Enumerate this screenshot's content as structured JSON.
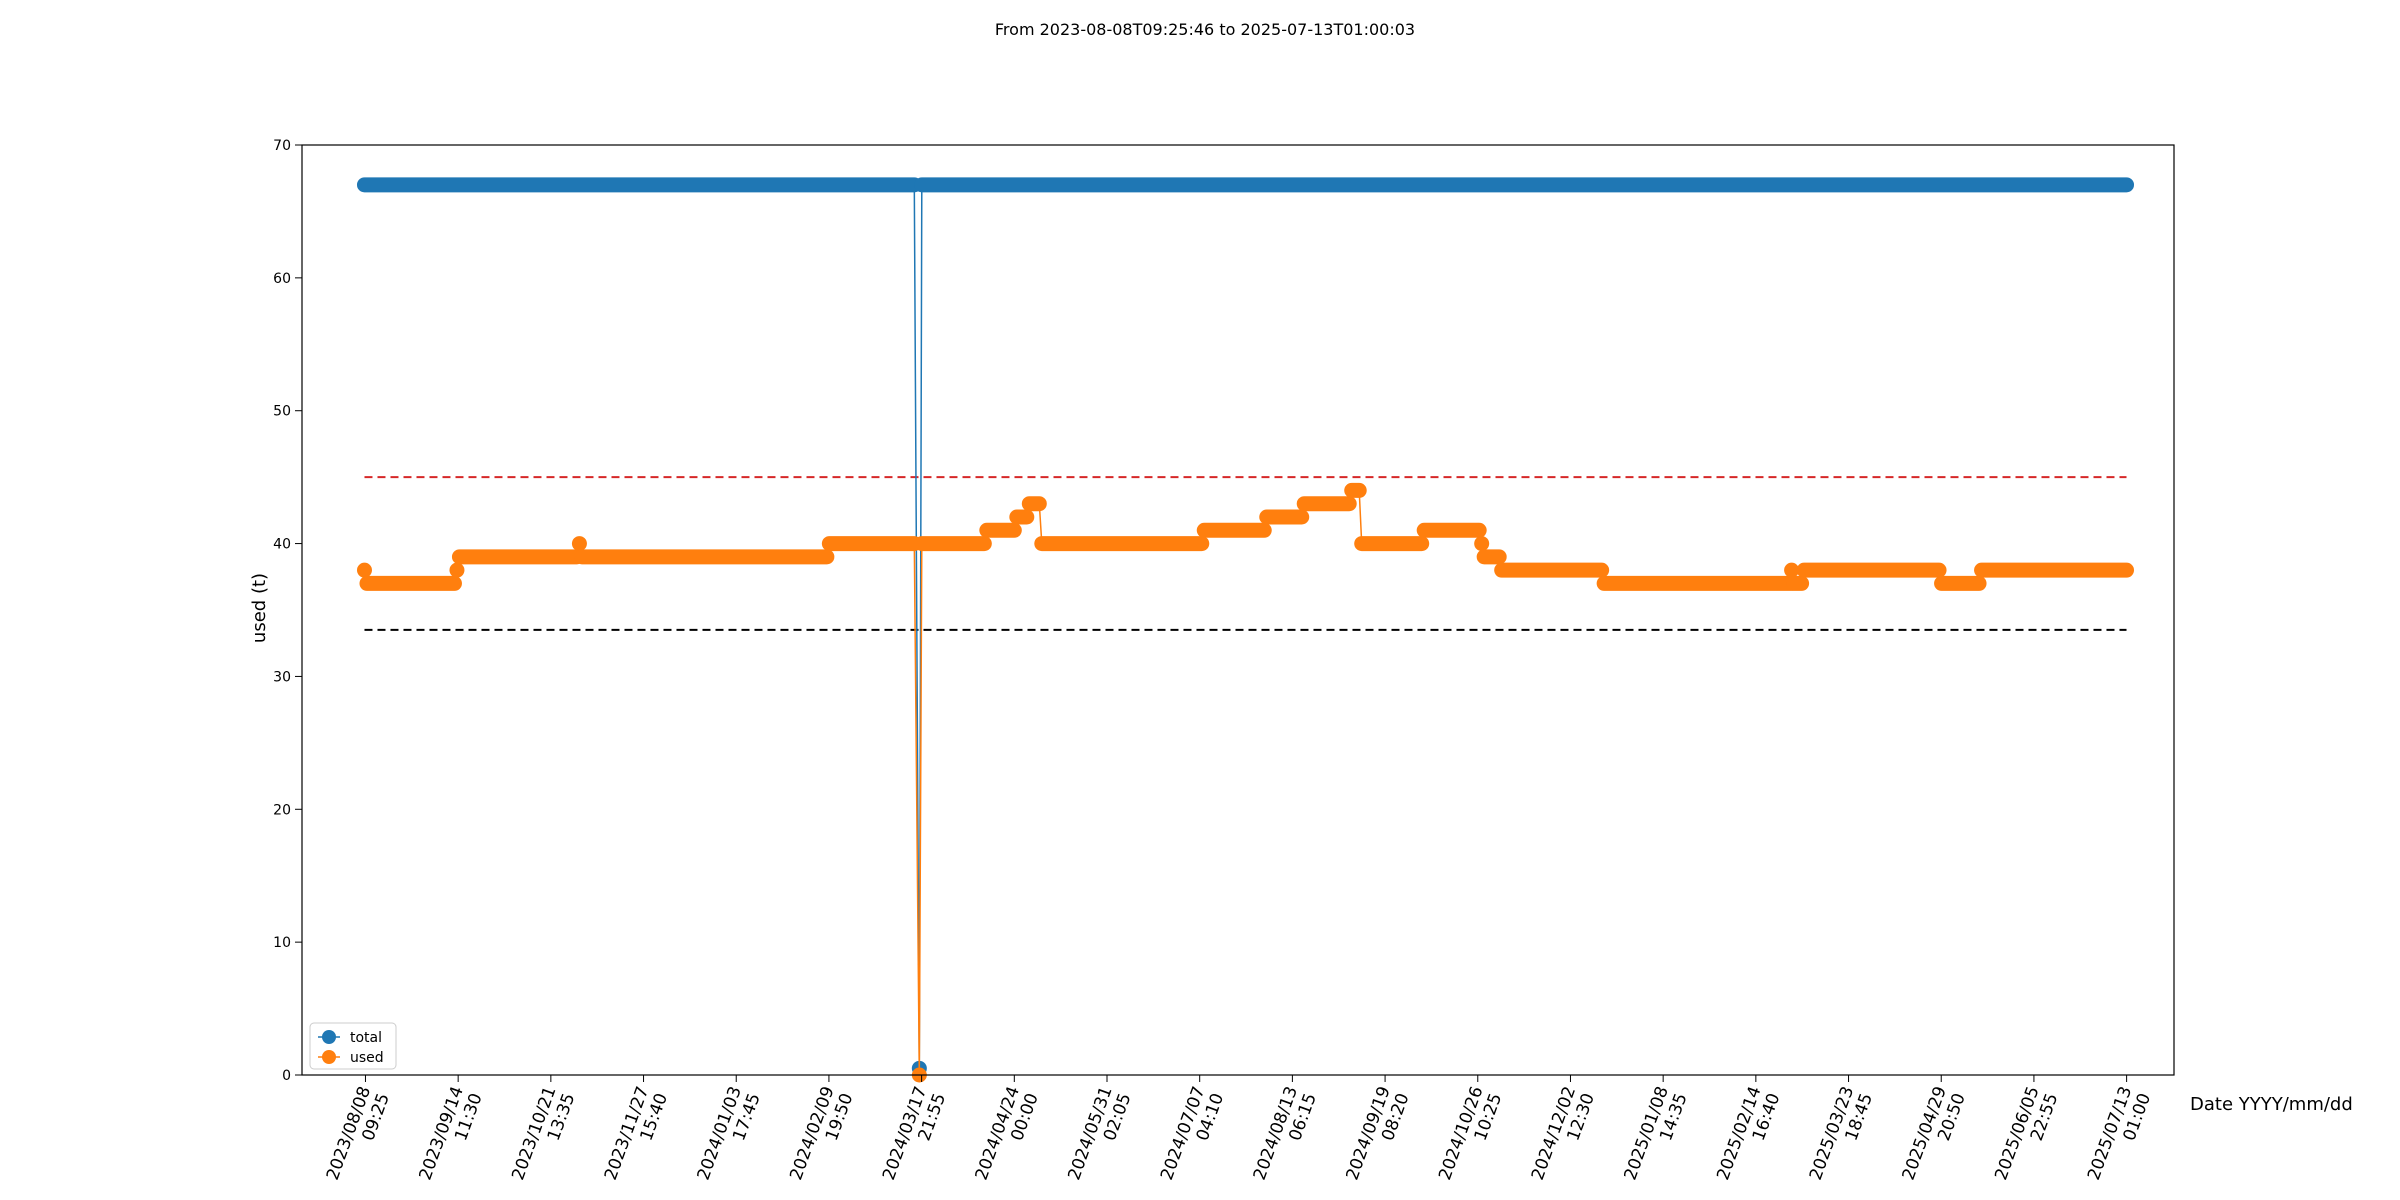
{
  "chart_data": {
    "type": "line",
    "title": "From 2023-08-08T09:25:46 to 2025-07-13T01:00:03",
    "xlabel": "Date YYYY/mm/dd",
    "ylabel": "used (t)",
    "ylim": [
      0,
      70
    ],
    "yticks": [
      0,
      10,
      20,
      30,
      40,
      50,
      60,
      70
    ],
    "xlim": [
      "2023-07-14",
      "2025-08-01"
    ],
    "xticks": [
      {
        "date": "2023-08-08T09:25",
        "label": [
          "2023/08/08",
          "09:25"
        ]
      },
      {
        "date": "2023-09-14T11:30",
        "label": [
          "2023/09/14",
          "11:30"
        ]
      },
      {
        "date": "2023-10-21T13:35",
        "label": [
          "2023/10/21",
          "13:35"
        ]
      },
      {
        "date": "2023-11-27T15:40",
        "label": [
          "2023/11/27",
          "15:40"
        ]
      },
      {
        "date": "2024-01-03T17:45",
        "label": [
          "2024/01/03",
          "17:45"
        ]
      },
      {
        "date": "2024-02-09T19:50",
        "label": [
          "2024/02/09",
          "19:50"
        ]
      },
      {
        "date": "2024-03-17T21:55",
        "label": [
          "2024/03/17",
          "21:55"
        ]
      },
      {
        "date": "2024-04-24T00:00",
        "label": [
          "2024/04/24",
          "00:00"
        ]
      },
      {
        "date": "2024-05-31T02:05",
        "label": [
          "2024/05/31",
          "02:05"
        ]
      },
      {
        "date": "2024-07-07T04:10",
        "label": [
          "2024/07/07",
          "04:10"
        ]
      },
      {
        "date": "2024-08-13T06:15",
        "label": [
          "2024/08/13",
          "06:15"
        ]
      },
      {
        "date": "2024-09-19T08:20",
        "label": [
          "2024/09/19",
          "08:20"
        ]
      },
      {
        "date": "2024-10-26T10:25",
        "label": [
          "2024/10/26",
          "10:25"
        ]
      },
      {
        "date": "2024-12-02T12:30",
        "label": [
          "2024/12/02",
          "12:30"
        ]
      },
      {
        "date": "2025-01-08T14:35",
        "label": [
          "2025/01/08",
          "14:35"
        ]
      },
      {
        "date": "2025-02-14T16:40",
        "label": [
          "2025/02/14",
          "16:40"
        ]
      },
      {
        "date": "2025-03-23T18:45",
        "label": [
          "2025/03/23",
          "18:45"
        ]
      },
      {
        "date": "2025-04-29T20:50",
        "label": [
          "2025/04/29",
          "20:50"
        ]
      },
      {
        "date": "2025-06-05T22:55",
        "label": [
          "2025/06/05",
          "22:55"
        ]
      },
      {
        "date": "2025-07-13T01:00",
        "label": [
          "2025/07/13",
          "01:00"
        ]
      }
    ],
    "legend": {
      "position": "lower-left",
      "entries": [
        "total",
        "used"
      ]
    },
    "grid": false,
    "series": [
      {
        "name": "total",
        "color": "#1f77b4",
        "segments": [
          {
            "start": "2023-08-08",
            "end": "2024-03-15",
            "value": 67
          },
          {
            "start": "2024-03-17",
            "end": "2024-03-17",
            "value": 0.5
          },
          {
            "start": "2024-03-18",
            "end": "2025-07-13",
            "value": 67
          }
        ]
      },
      {
        "name": "used",
        "color": "#ff7f0e",
        "segments": [
          {
            "start": "2023-08-08",
            "end": "2023-08-08",
            "value": 38
          },
          {
            "start": "2023-08-09",
            "end": "2023-09-13",
            "value": 37
          },
          {
            "start": "2023-09-14",
            "end": "2023-09-14",
            "value": 38
          },
          {
            "start": "2023-09-15",
            "end": "2023-11-01",
            "value": 39
          },
          {
            "start": "2023-11-02",
            "end": "2023-11-02",
            "value": 40
          },
          {
            "start": "2023-11-03",
            "end": "2024-02-09",
            "value": 39
          },
          {
            "start": "2024-02-10",
            "end": "2024-03-15",
            "value": 40
          },
          {
            "start": "2024-03-17",
            "end": "2024-03-17",
            "value": 0
          },
          {
            "start": "2024-03-18",
            "end": "2024-04-12",
            "value": 40
          },
          {
            "start": "2024-04-13",
            "end": "2024-04-24",
            "value": 41
          },
          {
            "start": "2024-04-25",
            "end": "2024-04-29",
            "value": 42
          },
          {
            "start": "2024-04-30",
            "end": "2024-05-04",
            "value": 43
          },
          {
            "start": "2024-05-05",
            "end": "2024-07-08",
            "value": 40
          },
          {
            "start": "2024-07-09",
            "end": "2024-08-02",
            "value": 41
          },
          {
            "start": "2024-08-03",
            "end": "2024-08-17",
            "value": 42
          },
          {
            "start": "2024-08-18",
            "end": "2024-09-05",
            "value": 43
          },
          {
            "start": "2024-09-06",
            "end": "2024-09-09",
            "value": 44
          },
          {
            "start": "2024-09-10",
            "end": "2024-10-04",
            "value": 40
          },
          {
            "start": "2024-10-05",
            "end": "2024-10-27",
            "value": 41
          },
          {
            "start": "2024-10-28",
            "end": "2024-10-28",
            "value": 40
          },
          {
            "start": "2024-10-29",
            "end": "2024-11-04",
            "value": 39
          },
          {
            "start": "2024-11-05",
            "end": "2024-12-15",
            "value": 38
          },
          {
            "start": "2024-12-16",
            "end": "2025-02-29",
            "value": 37
          },
          {
            "start": "2025-03-01",
            "end": "2025-03-01",
            "value": 38
          },
          {
            "start": "2025-03-02",
            "end": "2025-03-05",
            "value": 37
          },
          {
            "start": "2025-03-06",
            "end": "2025-04-29",
            "value": 38
          },
          {
            "start": "2025-04-30",
            "end": "2025-05-15",
            "value": 37
          },
          {
            "start": "2025-05-16",
            "end": "2025-07-13",
            "value": 38
          }
        ]
      }
    ],
    "reference_lines": [
      {
        "value": 45,
        "color": "#d62728",
        "style": "dashed",
        "start": "2023-08-08",
        "end": "2025-07-13"
      },
      {
        "value": 33.5,
        "color": "#000000",
        "style": "dashed",
        "start": "2023-08-08",
        "end": "2025-07-13"
      }
    ]
  }
}
